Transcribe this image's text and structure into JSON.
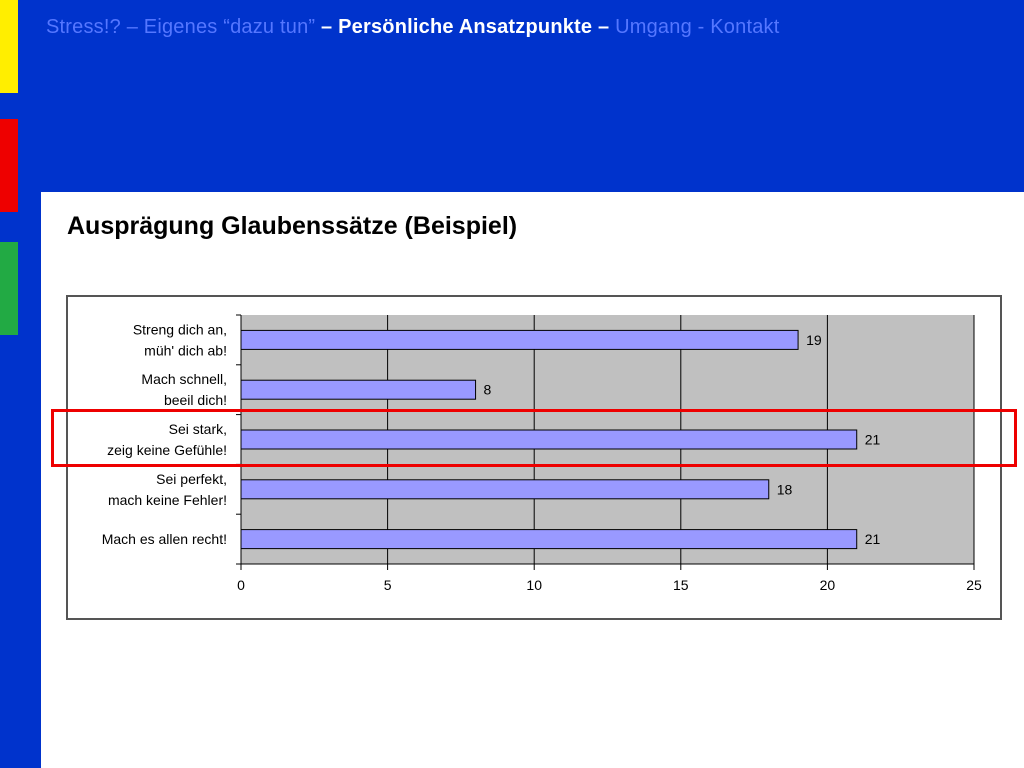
{
  "colors": {
    "background": "#0033cc",
    "accent_yellow": "#ffee00",
    "accent_red": "#ee0000",
    "accent_green": "#22aa44",
    "bar_fill": "#9999ff",
    "plot_bg": "#c0c0c0",
    "highlight": "#ee0000"
  },
  "nav": {
    "prefix": "Stress!? – Eigenes “dazu tun”",
    "active": "– Persönliche Ansatzpunkte –",
    "suffix": "Umgang - Kontakt"
  },
  "title": "Ausprägung Glaubenssätze (Beispiel)",
  "chart_data": {
    "type": "bar",
    "orientation": "horizontal",
    "categories": [
      "Streng dich an,\nmüh' dich ab!",
      "Mach schnell,\nbeeil dich!",
      "Sei stark,\nzeig keine Gefühle!",
      "Sei perfekt,\nmach keine Fehler!",
      "Mach es allen recht!"
    ],
    "values": [
      19,
      8,
      21,
      18,
      21
    ],
    "data_labels": [
      "19",
      "8",
      "21",
      "18",
      "21"
    ],
    "xlim": [
      0,
      25
    ],
    "x_ticks": [
      0,
      5,
      10,
      15,
      20,
      25
    ],
    "x_tick_labels": [
      "0",
      "5",
      "10",
      "15",
      "20",
      "25"
    ],
    "grid": "vertical",
    "highlighted_category": "Sei stark,\nzeig keine Gefühle!"
  }
}
